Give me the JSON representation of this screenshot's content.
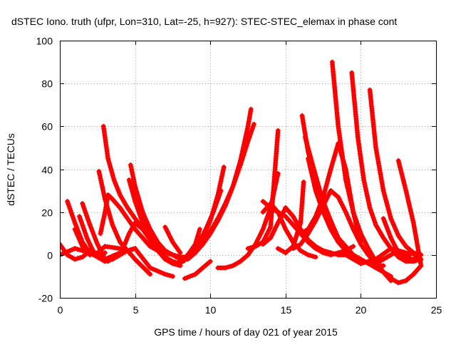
{
  "chart_data": {
    "type": "line",
    "title": "dSTEC Iono. truth (ufpr, Lon=310, Lat=-25, h=927): STEC-STEC_elemax in phase cont",
    "xlabel": "GPS time / hours of day 021 of year 2015",
    "ylabel": "dSTEC  / TECUs",
    "xlim": [
      0,
      25
    ],
    "ylim": [
      -20,
      100
    ],
    "xticks": [
      0,
      5,
      10,
      15,
      20,
      25
    ],
    "yticks": [
      -20,
      0,
      20,
      40,
      60,
      80,
      100
    ],
    "grid": true,
    "color": "#ff0000",
    "marker": "plus",
    "series": [
      {
        "x": [
          0.5,
          1.0,
          1.5,
          2.0,
          2.5,
          3.2
        ],
        "y": [
          25,
          15,
          6,
          1,
          -1,
          -3
        ]
      },
      {
        "x": [
          1.5,
          2.0,
          2.5,
          3.0
        ],
        "y": [
          24,
          14,
          5,
          -2
        ]
      },
      {
        "x": [
          0.0,
          0.5,
          1.0,
          1.5,
          2.0
        ],
        "y": [
          5,
          0,
          -2,
          -1,
          2
        ]
      },
      {
        "x": [
          0.0,
          1.0,
          2.0,
          3.0,
          4.0,
          5.0
        ],
        "y": [
          0,
          3,
          1,
          -2,
          1,
          3
        ]
      },
      {
        "x": [
          1.3,
          1.8,
          2.2,
          2.6,
          3.0
        ],
        "y": [
          18,
          8,
          2,
          -1,
          1
        ]
      },
      {
        "x": [
          1.0,
          1.5,
          2.0,
          2.5,
          3.0,
          4.0
        ],
        "y": [
          12,
          4,
          0,
          1,
          4,
          3
        ]
      },
      {
        "x": [
          2.6,
          3.0,
          3.5,
          4.0,
          5.0,
          6.0
        ],
        "y": [
          39,
          26,
          14,
          6,
          -2,
          -9
        ]
      },
      {
        "x": [
          2.9,
          3.2,
          3.6,
          4.0,
          4.5,
          5.0,
          5.5,
          6.0,
          6.5,
          7.0,
          7.5,
          8.0
        ],
        "y": [
          60,
          45,
          35,
          28,
          22,
          17,
          12,
          8,
          4,
          2,
          0,
          -2
        ]
      },
      {
        "x": [
          2.7,
          3.0,
          3.2,
          3.5,
          4.0,
          4.5,
          5.0,
          5.5,
          6.0,
          6.5,
          7.0,
          7.5,
          8.0
        ],
        "y": [
          10,
          20,
          28,
          26,
          22,
          17,
          12,
          8,
          4,
          2,
          1,
          0,
          -1
        ]
      },
      {
        "x": [
          2.0,
          2.5,
          3.0,
          3.5,
          4.0,
          4.5,
          5.0,
          6.0,
          7.0,
          7.5
        ],
        "y": [
          1,
          -1,
          -3,
          -2,
          0,
          2,
          3,
          -6,
          -9,
          -10
        ]
      },
      {
        "x": [
          4.7,
          5.0,
          5.5,
          6.0,
          6.5,
          7.0,
          7.5,
          8.0,
          8.4
        ],
        "y": [
          42,
          32,
          20,
          12,
          6,
          2,
          0,
          -1,
          -1
        ]
      },
      {
        "x": [
          4.6,
          5.0,
          5.5,
          6.0,
          6.5,
          7.0,
          7.5,
          8.0
        ],
        "y": [
          35,
          25,
          15,
          8,
          3,
          -1,
          -3,
          -4
        ]
      },
      {
        "x": [
          4.2,
          4.6,
          5.0,
          5.5,
          6.0,
          6.5,
          7.0,
          7.5,
          8.0
        ],
        "y": [
          3,
          10,
          15,
          12,
          7,
          2,
          -2,
          -4,
          -5
        ]
      },
      {
        "x": [
          7.0,
          7.5,
          8.0
        ],
        "y": [
          13,
          6,
          1
        ]
      },
      {
        "x": [
          8.0,
          8.5,
          9.0,
          9.5,
          10.0,
          10.5,
          10.9
        ],
        "y": [
          -2,
          -1,
          2,
          8,
          16,
          28,
          41
        ]
      },
      {
        "x": [
          8.2,
          8.7,
          9.2,
          9.7,
          10.2,
          10.7
        ],
        "y": [
          -3,
          0,
          5,
          12,
          20,
          30
        ]
      },
      {
        "x": [
          8.0,
          8.5,
          9.0,
          9.3
        ],
        "y": [
          -3,
          0,
          5,
          12
        ]
      },
      {
        "x": [
          8.3,
          9.0,
          9.5,
          10.0
        ],
        "y": [
          -11,
          -9,
          -6,
          -3
        ]
      },
      {
        "x": [
          8.5,
          9.0,
          9.5,
          10.0,
          10.5,
          11.0,
          11.5,
          12.0,
          12.5,
          12.7
        ],
        "y": [
          -2,
          1,
          5,
          10,
          16,
          23,
          32,
          44,
          60,
          68
        ]
      },
      {
        "x": [
          8.6,
          9.0,
          9.5,
          10.0,
          10.5,
          11.0,
          11.5,
          12.0,
          12.5,
          12.9
        ],
        "y": [
          -1,
          2,
          6,
          11,
          17,
          24,
          32,
          42,
          53,
          61
        ]
      },
      {
        "x": [
          10.5,
          11.0,
          11.5,
          12.0,
          12.5,
          13.0,
          13.5,
          14.0,
          14.5
        ],
        "y": [
          -6,
          -6,
          -5,
          -3,
          0,
          5,
          12,
          22,
          38
        ]
      },
      {
        "x": [
          12.5,
          13.0,
          13.5,
          14.0,
          14.5
        ],
        "y": [
          3,
          4,
          6,
          13,
          58
        ]
      },
      {
        "x": [
          13.5,
          14.0,
          14.5,
          15.0,
          15.5,
          16.0,
          16.5,
          17.0
        ],
        "y": [
          20,
          24,
          20,
          12,
          6,
          2,
          0,
          -1
        ]
      },
      {
        "x": [
          13.5,
          14.0,
          14.5,
          15.0,
          15.5,
          16.0,
          16.5,
          17.0,
          17.5,
          18.0,
          18.5,
          19.0
        ],
        "y": [
          5,
          8,
          15,
          22,
          18,
          12,
          7,
          4,
          2,
          1,
          0,
          0
        ]
      },
      {
        "x": [
          13.5,
          14.0,
          14.5,
          15.0,
          15.5,
          16.0,
          16.5,
          17.0,
          17.5,
          18.0,
          18.5,
          19.0,
          19.5
        ],
        "y": [
          25,
          22,
          20,
          18,
          14,
          10,
          6,
          3,
          1,
          0,
          1,
          2,
          4
        ]
      },
      {
        "x": [
          14.5,
          15.0,
          15.5,
          16.0,
          16.2
        ],
        "y": [
          3,
          1,
          4,
          15,
          34
        ]
      },
      {
        "x": [
          16.1,
          16.5,
          17.0,
          17.5,
          18.0,
          18.5,
          19.0
        ],
        "y": [
          65,
          48,
          35,
          25,
          16,
          8,
          2
        ]
      },
      {
        "x": [
          16.3,
          16.8,
          17.2,
          17.6,
          18.0,
          18.5,
          19.0,
          19.5,
          20.0,
          20.5,
          21.0,
          21.5
        ],
        "y": [
          55,
          42,
          32,
          22,
          14,
          8,
          4,
          0,
          -2,
          -4,
          -5,
          -5
        ]
      },
      {
        "x": [
          16.5,
          17.0,
          17.5,
          18.0,
          18.5,
          19.0,
          19.5,
          20.0,
          20.5,
          21.0,
          21.5,
          22.0
        ],
        "y": [
          45,
          30,
          20,
          12,
          6,
          2,
          0,
          -2,
          -4,
          -6,
          -8,
          -10
        ]
      },
      {
        "x": [
          16.0,
          16.5,
          17.0,
          17.5,
          18.0,
          18.5,
          19.0,
          19.5,
          20.0
        ],
        "y": [
          10,
          12,
          18,
          27,
          40,
          52,
          40,
          20,
          5
        ]
      },
      {
        "x": [
          15.5,
          16.0,
          16.5,
          17.0,
          17.5,
          18.0,
          18.5,
          19.0,
          19.5,
          20.0,
          20.5,
          21.0,
          21.5,
          22.0,
          22.5,
          23.0,
          23.5,
          24.0
        ],
        "y": [
          3,
          5,
          10,
          16,
          23,
          30,
          27,
          20,
          12,
          5,
          0,
          -4,
          -8,
          -11,
          -13,
          -12,
          -9,
          -5
        ]
      },
      {
        "x": [
          18.1,
          18.5,
          19.0,
          19.5,
          20.0,
          20.5,
          21.0,
          21.5,
          22.0
        ],
        "y": [
          90,
          60,
          35,
          20,
          10,
          3,
          -3,
          -8,
          -12
        ]
      },
      {
        "x": [
          19.4,
          19.8,
          20.2,
          20.6,
          21.0,
          21.5,
          22.0,
          22.5,
          23.0,
          23.5,
          24.0
        ],
        "y": [
          85,
          55,
          35,
          22,
          14,
          8,
          3,
          -1,
          -3,
          -3,
          -2
        ]
      },
      {
        "x": [
          20.6,
          21.0,
          21.5,
          22.0,
          22.5,
          23.0,
          23.5,
          24.0
        ],
        "y": [
          77,
          50,
          30,
          17,
          9,
          4,
          1,
          0
        ]
      },
      {
        "x": [
          22.5,
          23.0,
          23.5,
          24.0
        ],
        "y": [
          44,
          30,
          15,
          -5
        ]
      },
      {
        "x": [
          19.0,
          20.0,
          21.0,
          22.0,
          23.0,
          23.8
        ],
        "y": [
          0,
          -4,
          -2,
          3,
          1,
          0
        ]
      },
      {
        "x": [
          21.5,
          22.0,
          22.5,
          23.0,
          23.5,
          24.0
        ],
        "y": [
          17,
          8,
          1,
          -2,
          -2,
          0
        ]
      },
      {
        "x": [
          20.5,
          21.0,
          21.5,
          22.0,
          22.5,
          23.0,
          23.5
        ],
        "y": [
          -3,
          -4,
          -2,
          0,
          2,
          0,
          -3
        ]
      }
    ]
  }
}
